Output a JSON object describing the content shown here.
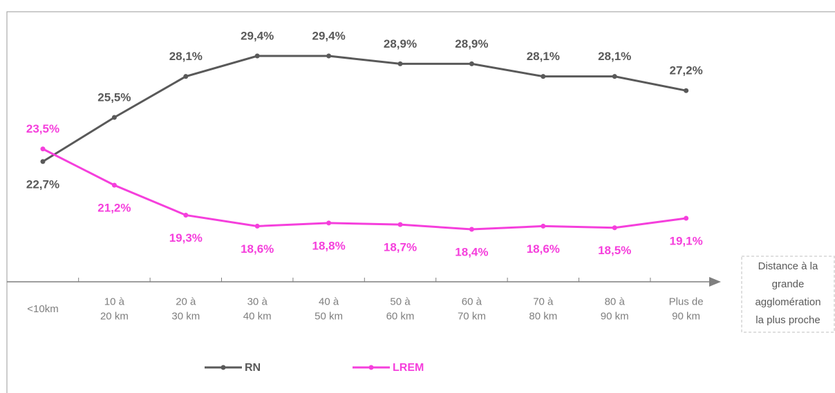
{
  "chart_data": {
    "type": "line",
    "categories": [
      [
        "<10km"
      ],
      [
        "10 à",
        "20 km"
      ],
      [
        "20 à",
        "30 km"
      ],
      [
        "30 à",
        "40 km"
      ],
      [
        "40 à",
        "50 km"
      ],
      [
        "50 à",
        "60 km"
      ],
      [
        "60 à",
        "70 km"
      ],
      [
        "70 à",
        "80 km"
      ],
      [
        "80 à",
        "90 km"
      ],
      [
        "Plus de",
        "90 km"
      ]
    ],
    "x_label": [
      "Distance à la",
      "grande",
      "agglomération",
      "la plus proche"
    ],
    "series": [
      {
        "name": "RN",
        "color": "#595959",
        "values": [
          22.7,
          25.5,
          28.1,
          29.4,
          29.4,
          28.9,
          28.9,
          28.1,
          28.1,
          27.2
        ],
        "value_labels": [
          "22,7%",
          "25,5%",
          "28,1%",
          "29,4%",
          "29,4%",
          "28,9%",
          "28,9%",
          "28,1%",
          "28,1%",
          "27,2%"
        ]
      },
      {
        "name": "LREM",
        "color": "#f53fdc",
        "values": [
          23.5,
          21.2,
          19.3,
          18.6,
          18.8,
          18.7,
          18.4,
          18.6,
          18.5,
          19.1
        ],
        "value_labels": [
          "23,5%",
          "21,2%",
          "19,3%",
          "18,6%",
          "18,8%",
          "18,7%",
          "18,4%",
          "18,6%",
          "18,5%",
          "19,1%"
        ]
      }
    ]
  }
}
